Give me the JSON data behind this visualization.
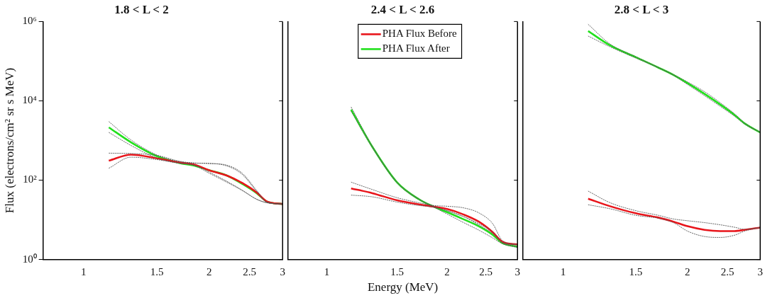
{
  "chart_data": [
    {
      "type": "line",
      "title": "1.8 < L < 2",
      "ylabel": "Flux (electrons/cm² sr s MeV)",
      "log": "xy",
      "xlim": [
        0.8,
        3
      ],
      "xticks": [
        1,
        1.5,
        2,
        2.5,
        3
      ],
      "ylim": [
        1,
        1000000
      ],
      "yticks": [
        {
          "value": 1,
          "label": "10⁰"
        },
        {
          "value": 100,
          "label": "10²"
        },
        {
          "value": 10000,
          "label": "10⁴"
        },
        {
          "value": 1000000,
          "label": "10⁶"
        }
      ],
      "grid": false,
      "line_style": "solid",
      "marker": "none",
      "x": [
        1.15,
        1.3,
        1.5,
        1.7,
        1.85,
        2.0,
        2.2,
        2.4,
        2.6,
        2.75,
        3.0
      ],
      "series": [
        {
          "color": "#555555",
          "line_style": "dotted",
          "values": [
            480,
            470,
            420,
            300,
            270,
            265,
            230,
            140,
            52,
            28,
            25
          ]
        },
        {
          "color": "#555555",
          "line_style": "dotted",
          "values": [
            200,
            380,
            330,
            265,
            240,
            160,
            95,
            56,
            33,
            27,
            25
          ]
        },
        {
          "color": "#555555",
          "line_style": "dotted",
          "values": [
            3000,
            1030,
            430,
            290,
            270,
            263,
            240,
            150,
            55,
            28,
            25
          ]
        },
        {
          "color": "#555555",
          "line_style": "dotted",
          "values": [
            1600,
            750,
            360,
            270,
            230,
            150,
            90,
            55,
            33,
            27,
            25
          ]
        },
        {
          "color": "#e8151b",
          "values": [
            310,
            440,
            355,
            280,
            245,
            178,
            132,
            85,
            49,
            29,
            25
          ]
        },
        {
          "color": "#22e01c",
          "values": [
            2140,
            900,
            400,
            270,
            230,
            178,
            132,
            81,
            47,
            29,
            25
          ]
        }
      ]
    },
    {
      "type": "line",
      "title": "2.4 < L < 2.6",
      "xlabel": "Energy (MeV)",
      "log": "xy",
      "xlim": [
        0.8,
        3
      ],
      "xticks": [
        1,
        1.5,
        2,
        2.5,
        3
      ],
      "ylim": [
        1,
        1000000
      ],
      "yticks": [
        1,
        100,
        10000,
        1000000
      ],
      "tick_labels": "x",
      "grid": false,
      "legend": "top",
      "line_style": "solid",
      "marker": "none",
      "x": [
        1.15,
        1.3,
        1.5,
        1.7,
        1.85,
        2.0,
        2.2,
        2.4,
        2.6,
        2.75,
        3.0
      ],
      "series": [
        {
          "color": "#555555",
          "line_style": "dotted",
          "values": [
            89,
            58,
            36,
            27,
            23,
            22,
            20,
            15,
            8,
            3,
            2.4
          ]
        },
        {
          "color": "#555555",
          "line_style": "dotted",
          "values": [
            42,
            38,
            28,
            23,
            21,
            17,
            12,
            7.5,
            4.5,
            2.7,
            2.3
          ]
        },
        {
          "color": "#555555",
          "line_style": "dotted",
          "values": [
            7000,
            720,
            90,
            34,
            22,
            17,
            12,
            8,
            5,
            2.7,
            2.1
          ]
        },
        {
          "color": "#555555",
          "line_style": "dotted",
          "values": [
            5500,
            660,
            84,
            32,
            21,
            14,
            8.5,
            5.5,
            3.5,
            2.5,
            2.0
          ]
        },
        {
          "name": "PHA Flux Before",
          "color": "#e8151b",
          "values": [
            62,
            47,
            31,
            24.6,
            21.5,
            18.7,
            13.6,
            9.0,
            4.9,
            2.8,
            2.4
          ]
        },
        {
          "name": "PHA Flux After",
          "color": "#22e01c",
          "values": [
            6000,
            690,
            87,
            33,
            21.5,
            15.6,
            10.3,
            6.9,
            4.2,
            2.6,
            2.1
          ]
        }
      ]
    },
    {
      "type": "line",
      "title": "2.8 < L < 3",
      "log": "xy",
      "xlim": [
        0.8,
        3
      ],
      "xticks": [
        1,
        1.5,
        2,
        2.5,
        3
      ],
      "ylim": [
        1,
        1000000
      ],
      "yticks": [
        1,
        100,
        10000,
        1000000
      ],
      "tick_labels": "x",
      "grid": false,
      "line_style": "solid",
      "marker": "none",
      "x": [
        1.15,
        1.3,
        1.5,
        1.7,
        1.85,
        2.0,
        2.2,
        2.4,
        2.6,
        2.75,
        3.0
      ],
      "series": [
        {
          "color": "#555555",
          "line_style": "dotted",
          "values": [
            53,
            27,
            17,
            13,
            10.5,
            9.5,
            8.5,
            7.5,
            6.5,
            5.8,
            6.4
          ]
        },
        {
          "color": "#555555",
          "line_style": "dotted",
          "values": [
            24,
            19,
            13,
            11,
            8.5,
            5.2,
            3.8,
            3.6,
            4.1,
            5.2,
            6.4
          ]
        },
        {
          "color": "#555555",
          "line_style": "dotted",
          "values": [
            850000,
            270000,
            130000,
            70000,
            46000,
            30000,
            17000,
            9000,
            4700,
            2800,
            1600
          ]
        },
        {
          "color": "#555555",
          "line_style": "dotted",
          "values": [
            430000,
            230000,
            120000,
            68000,
            44000,
            26000,
            13500,
            7300,
            4100,
            2600,
            1600
          ]
        },
        {
          "color": "#e8151b",
          "values": [
            34,
            22,
            14.6,
            11.4,
            9.0,
            6.9,
            5.6,
            5.2,
            5.2,
            5.6,
            6.4
          ]
        },
        {
          "color": "#22e01c",
          "values": [
            575000,
            250000,
            126000,
            69000,
            45000,
            28000,
            15000,
            8100,
            4400,
            2700,
            1600
          ]
        }
      ]
    }
  ]
}
